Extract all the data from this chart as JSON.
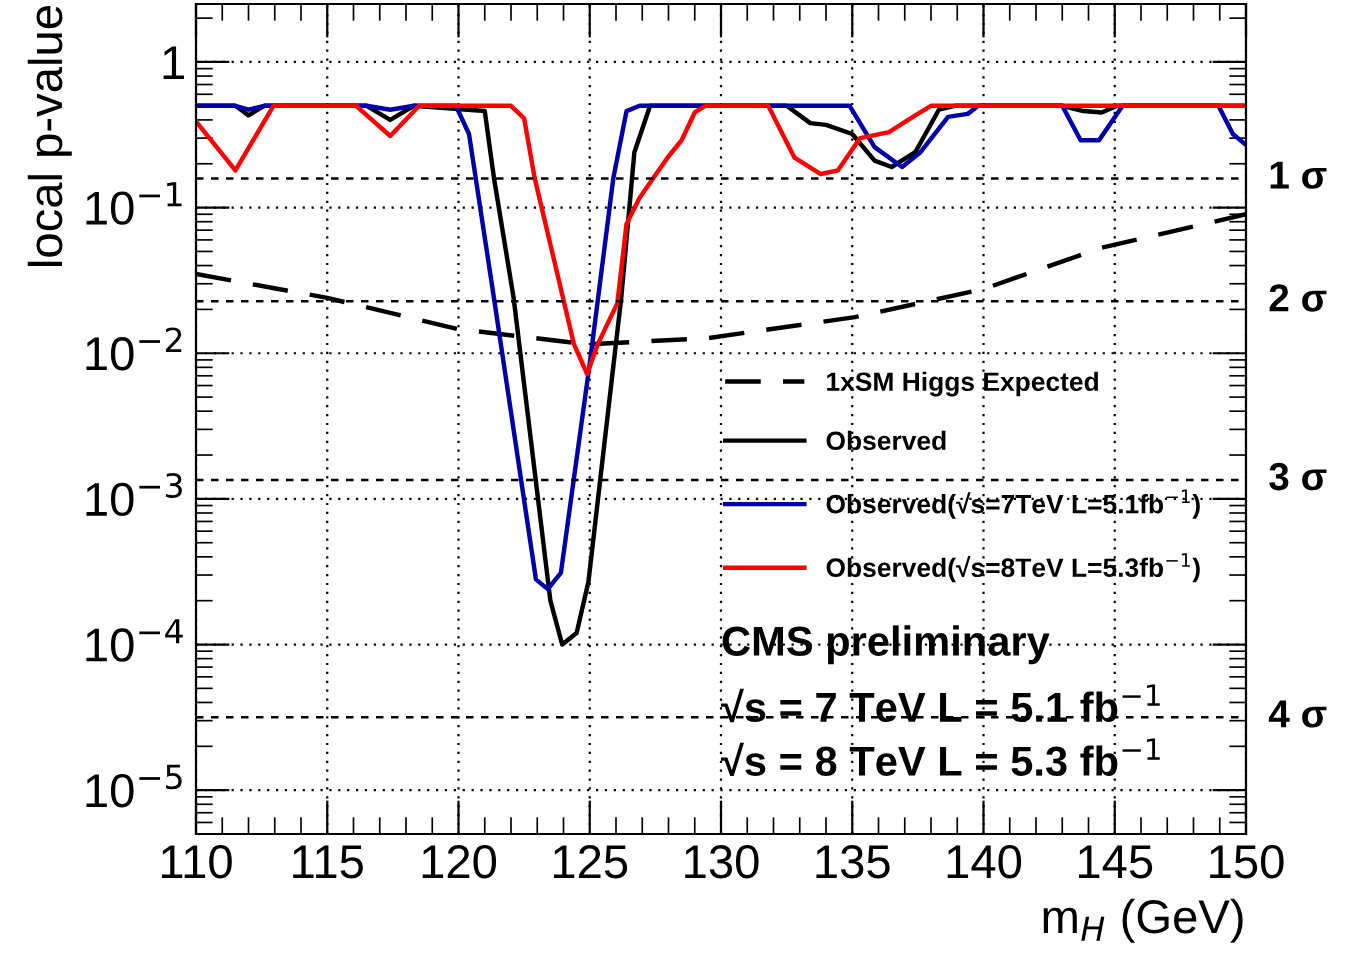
{
  "chart_data": {
    "type": "line",
    "xlabel": "m$_{H}$ (GeV)",
    "ylabel": "local p-value",
    "log": "y",
    "grid": true,
    "legend": "right",
    "marker": "none",
    "xlim": [
      110,
      150
    ],
    "xticks": [
      110,
      115,
      120,
      125,
      130,
      135,
      140,
      145,
      150
    ],
    "ylim": [
      5e-06,
      2.5
    ],
    "yticks": [
      {
        "value": 1e-05,
        "label": "10$^{−5}$"
      },
      {
        "value": 0.0001,
        "label": "10$^{−4}$"
      },
      {
        "value": 0.001,
        "label": "10$^{−3}$"
      },
      {
        "value": 0.01,
        "label": "10$^{−2}$"
      },
      {
        "value": 0.1,
        "label": "10$^{−1}$"
      },
      1
    ],
    "series": [
      {
        "name": "1xSM Higgs Expected",
        "color": "#000000",
        "line_style": "dashed",
        "x": [
          110,
          115,
          119.95,
          124.9,
          129.5,
          135.1,
          140,
          144.5,
          150
        ],
        "values": [
          0.035,
          0.024,
          0.0147,
          0.0115,
          0.0127,
          0.0177,
          0.0276,
          0.053,
          0.09
        ]
      },
      {
        "name": "Observed",
        "color": "#000000",
        "line_style": "solid",
        "x": [
          110,
          111.5,
          112,
          112.6,
          116.5,
          117.4,
          118.3,
          121,
          121.35,
          122.1,
          123.5,
          123.95,
          124.5,
          124.95,
          126.2,
          126.7,
          127.3,
          132.5,
          133.4,
          134,
          135,
          135.85,
          136.5,
          137.4,
          138.3,
          138.9,
          143,
          143.8,
          144.5,
          145.1,
          150
        ],
        "values": [
          0.5,
          0.5,
          0.43,
          0.5,
          0.5,
          0.4,
          0.5,
          0.46,
          0.16,
          0.024,
          0.0002,
          0.0001,
          0.00012,
          0.00027,
          0.024,
          0.24,
          0.5,
          0.5,
          0.38,
          0.37,
          0.32,
          0.21,
          0.19,
          0.24,
          0.47,
          0.5,
          0.5,
          0.46,
          0.45,
          0.5,
          0.5
        ]
      },
      {
        "name": "Observed(√s=7TeV L=5.1fb$^{−1}$)",
        "color": "#0000aa",
        "line_style": "solid",
        "x": [
          110,
          111.5,
          112,
          112.6,
          116.5,
          117.4,
          118.3,
          119.9,
          120.4,
          121.35,
          122.95,
          123.4,
          123.9,
          125,
          125.9,
          126.4,
          126.9,
          134.9,
          135.85,
          136.9,
          137.6,
          138.65,
          139.4,
          139.8,
          143,
          143.7,
          144.4,
          145.3,
          148.95,
          149.5,
          150
        ],
        "values": [
          0.5,
          0.5,
          0.47,
          0.5,
          0.5,
          0.47,
          0.5,
          0.5,
          0.32,
          0.024,
          0.00028,
          0.00024,
          0.00031,
          0.0085,
          0.16,
          0.46,
          0.5,
          0.5,
          0.26,
          0.19,
          0.24,
          0.42,
          0.44,
          0.5,
          0.5,
          0.29,
          0.29,
          0.5,
          0.5,
          0.32,
          0.27
        ]
      },
      {
        "name": "Observed(√s=8TeV L=5.3fb$^{−1}$)",
        "color": "#ff0000",
        "line_style": "solid",
        "x": [
          110,
          111.5,
          112.95,
          116.1,
          117.4,
          118.5,
          122,
          122.5,
          122.9,
          124.4,
          124.9,
          125.3,
          126.05,
          126.4,
          126.9,
          127.96,
          128.5,
          129,
          129.4,
          131.8,
          132.8,
          133.8,
          134.45,
          135.3,
          136.4,
          137.4,
          138,
          150
        ],
        "values": [
          0.39,
          0.18,
          0.5,
          0.5,
          0.31,
          0.5,
          0.5,
          0.41,
          0.16,
          0.0115,
          0.0072,
          0.0115,
          0.022,
          0.077,
          0.117,
          0.22,
          0.29,
          0.45,
          0.5,
          0.5,
          0.22,
          0.17,
          0.18,
          0.3,
          0.33,
          0.43,
          0.5,
          0.5
        ]
      }
    ],
    "ref_lines": [
      {
        "axis": "y",
        "value": 0.1587,
        "label": "1 σ"
      },
      {
        "axis": "y",
        "value": 0.02275,
        "label": "2 σ"
      },
      {
        "axis": "y",
        "value": 0.00135,
        "label": "3 σ"
      },
      {
        "axis": "y",
        "value": 3.17e-05,
        "label": "4 σ"
      }
    ],
    "annotations": [
      "CMS preliminary",
      "√s = 7 TeV L = 5.1 fb$^{−1}$",
      "√s = 8 TeV L = 5.3 fb$^{−1}$"
    ]
  }
}
